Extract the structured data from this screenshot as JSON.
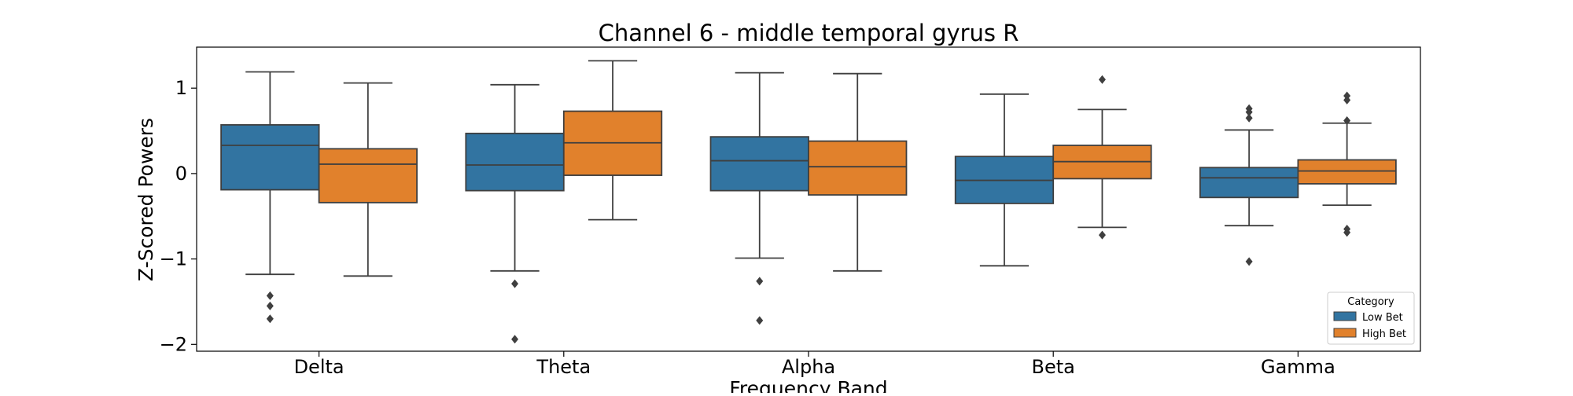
{
  "chart_data": {
    "type": "box",
    "title": "Channel 6 - middle temporal gyrus R",
    "xlabel": "Frequency Band",
    "ylabel": "Z-Scored Powers",
    "categories": [
      "Delta",
      "Theta",
      "Alpha",
      "Beta",
      "Gamma"
    ],
    "ylim": [
      -2.08,
      1.48
    ],
    "yticks": [
      1,
      0,
      -1,
      -2
    ],
    "ytick_labels": [
      "1",
      "0",
      "−1",
      "−2"
    ],
    "grid": false,
    "legend": {
      "title": "Category",
      "position": "lower-right"
    },
    "series": [
      {
        "name": "Low Bet",
        "color": "#3274a1",
        "boxes": [
          {
            "whisker_low": -1.18,
            "q1": -0.19,
            "median": 0.33,
            "q3": 0.57,
            "whisker_high": 1.19,
            "outliers": [
              -1.43,
              -1.55,
              -1.7
            ]
          },
          {
            "whisker_low": -1.14,
            "q1": -0.2,
            "median": 0.1,
            "q3": 0.47,
            "whisker_high": 1.04,
            "outliers": [
              -1.29,
              -1.94
            ]
          },
          {
            "whisker_low": -0.99,
            "q1": -0.2,
            "median": 0.15,
            "q3": 0.43,
            "whisker_high": 1.18,
            "outliers": [
              -1.26,
              -1.72
            ]
          },
          {
            "whisker_low": -1.08,
            "q1": -0.35,
            "median": -0.08,
            "q3": 0.2,
            "whisker_high": 0.93,
            "outliers": []
          },
          {
            "whisker_low": -0.61,
            "q1": -0.28,
            "median": -0.05,
            "q3": 0.07,
            "whisker_high": 0.51,
            "outliers": [
              0.76,
              0.72,
              0.65,
              -1.03
            ]
          }
        ]
      },
      {
        "name": "High Bet",
        "color": "#e1812c",
        "boxes": [
          {
            "whisker_low": -1.2,
            "q1": -0.34,
            "median": 0.11,
            "q3": 0.29,
            "whisker_high": 1.06,
            "outliers": []
          },
          {
            "whisker_low": -0.54,
            "q1": -0.02,
            "median": 0.36,
            "q3": 0.73,
            "whisker_high": 1.32,
            "outliers": []
          },
          {
            "whisker_low": -1.14,
            "q1": -0.25,
            "median": 0.08,
            "q3": 0.38,
            "whisker_high": 1.17,
            "outliers": []
          },
          {
            "whisker_low": -0.63,
            "q1": -0.06,
            "median": 0.14,
            "q3": 0.33,
            "whisker_high": 0.75,
            "outliers": [
              1.1,
              -0.72
            ]
          },
          {
            "whisker_low": -0.37,
            "q1": -0.12,
            "median": 0.03,
            "q3": 0.16,
            "whisker_high": 0.59,
            "outliers": [
              0.91,
              0.86,
              0.62,
              -0.65,
              -0.69
            ]
          }
        ]
      }
    ]
  }
}
